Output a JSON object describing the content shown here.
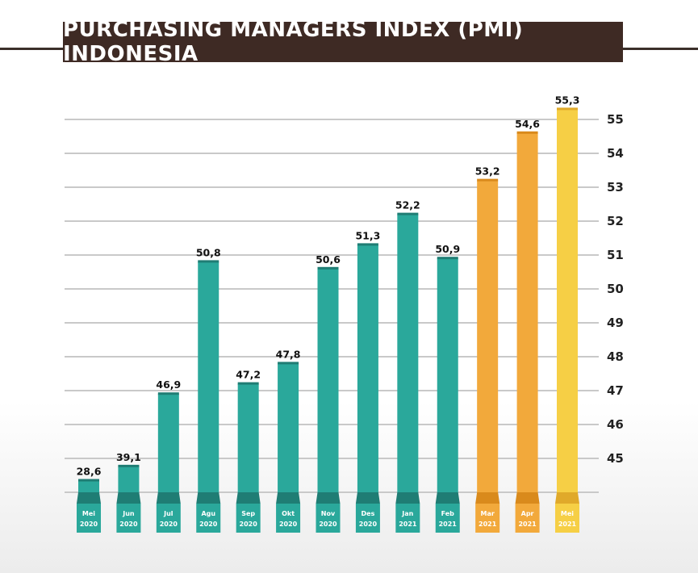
{
  "title": "PURCHASING MANAGERS INDEX (PMI) INDONESIA",
  "colors": {
    "banner": "#3e2a24",
    "teal": "#2aa89b",
    "teal_dark": "#1f7d74",
    "orange": "#f2a93b",
    "orange_dark": "#d98a1c",
    "yellow": "#f6cf45",
    "yellow_dark": "#e0a92a",
    "grid": "#c9c9c9"
  },
  "chart_data": {
    "type": "bar",
    "title": "PURCHASING MANAGERS INDEX (PMI) INDONESIA",
    "categories": [
      [
        "Mei",
        "2020"
      ],
      [
        "Jun",
        "2020"
      ],
      [
        "Jul",
        "2020"
      ],
      [
        "Agu",
        "2020"
      ],
      [
        "Sep",
        "2020"
      ],
      [
        "Okt",
        "2020"
      ],
      [
        "Nov",
        "2020"
      ],
      [
        "Des",
        "2020"
      ],
      [
        "Jan",
        "2021"
      ],
      [
        "Feb",
        "2021"
      ],
      [
        "Mar",
        "2021"
      ],
      [
        "Apr",
        "2021"
      ],
      [
        "Mei",
        "2021"
      ]
    ],
    "values": [
      28.6,
      39.1,
      46.9,
      50.8,
      47.2,
      47.8,
      50.6,
      51.3,
      52.2,
      50.9,
      53.2,
      54.6,
      55.3
    ],
    "data_labels": [
      "28,6",
      "39,1",
      "46,9",
      "50,8",
      "47,2",
      "47,8",
      "50,6",
      "51,3",
      "52,2",
      "50,9",
      "53,2",
      "54,6",
      "55,3"
    ],
    "bar_colors": [
      "teal",
      "teal",
      "teal",
      "teal",
      "teal",
      "teal",
      "teal",
      "teal",
      "teal",
      "teal",
      "orange",
      "orange",
      "yellow"
    ],
    "y_ticks": [
      45,
      46,
      47,
      48,
      49,
      50,
      51,
      52,
      53,
      54,
      55
    ],
    "y_axis_side": "right",
    "ylim": [
      44,
      55.5
    ],
    "grid": true
  }
}
